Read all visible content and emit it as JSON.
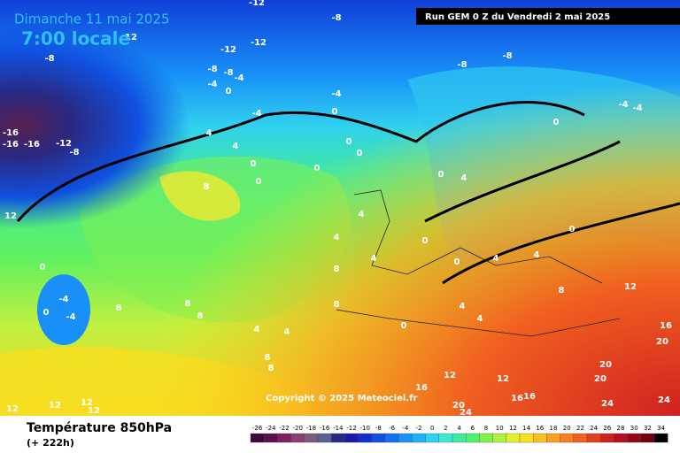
{
  "header": {
    "date": "Dimanche 11 mai 2025",
    "time": "7:00 locale",
    "run": "Run GEM 0 Z du Vendredi 2 mai 2025"
  },
  "copyright": "Copyright © 2025 Meteociel.fr",
  "footer": {
    "title": "Température 850hPa",
    "lead": "(+ 222h)"
  },
  "colorbar": {
    "ticks": [
      -26,
      -24,
      -22,
      -20,
      -18,
      -16,
      -14,
      -12,
      -10,
      -8,
      -6,
      -4,
      -2,
      0,
      2,
      4,
      6,
      8,
      10,
      12,
      14,
      16,
      18,
      20,
      22,
      24,
      26,
      28,
      30,
      32,
      34
    ],
    "colors": [
      "#3c0a3c",
      "#5a1050",
      "#7a2060",
      "#8a4070",
      "#7a5a80",
      "#5a6090",
      "#2a2880",
      "#1a1aa8",
      "#1030c8",
      "#1050e0",
      "#1070f0",
      "#1890f8",
      "#20b0f8",
      "#30d0f0",
      "#40e8d0",
      "#40e8a0",
      "#50f070",
      "#80f050",
      "#b0f040",
      "#e0f030",
      "#f8e020",
      "#f8c020",
      "#f8a020",
      "#f88020",
      "#f06020",
      "#e04020",
      "#d02020",
      "#b01020",
      "#900818",
      "#700010",
      "#000000"
    ]
  },
  "contour_labels": [
    -12,
    -8,
    -12,
    -12,
    -8,
    -8,
    -4,
    -4,
    0,
    -8,
    -16,
    -16,
    -16,
    -12,
    -8,
    -8,
    -8,
    -4,
    0,
    -4,
    4,
    4,
    0,
    0,
    0,
    0,
    0,
    8,
    0,
    4,
    0,
    -4,
    -4,
    4,
    4,
    0,
    4,
    0,
    4,
    4,
    0,
    8,
    0,
    -4,
    -4,
    0,
    8,
    8,
    8,
    4,
    4,
    8,
    0,
    4,
    4,
    8,
    12,
    16,
    20,
    20,
    20,
    8,
    8,
    12,
    12,
    16,
    16,
    16,
    20,
    24,
    24,
    24,
    12,
    12,
    12,
    12,
    12,
    12
  ]
}
